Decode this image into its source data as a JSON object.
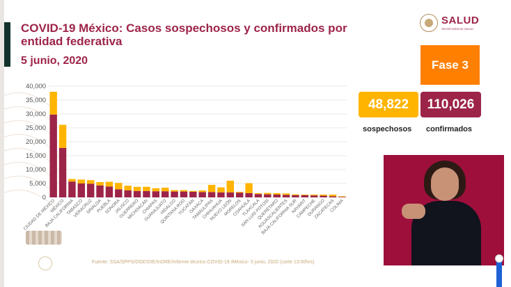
{
  "header": {
    "title": "COVID-19 México: Casos sospechosos y confirmados por entidad federativa",
    "date": "5 junio, 2020"
  },
  "logo": {
    "name": "SALUD",
    "subtitle": "SECRETARÍA DE SALUD"
  },
  "phase": {
    "label": "Fase 3",
    "color": "#ff7f00"
  },
  "totals": {
    "suspected_value": "48,822",
    "suspected_label": "sospechosos",
    "confirmed_value": "110,026",
    "confirmed_label": "confirmados"
  },
  "footer": {
    "source": "Fuente: SSA/SPPS/DGE/DIE/InDRE/Informe técnico.COVID-19 /México- 5 junio, 2020 (corte 13:00hrs)"
  },
  "colors": {
    "confirmed": "#9d2449",
    "suspected": "#ffb400",
    "title": "#9d2449",
    "axis_text": "#555555"
  },
  "chart_data": {
    "type": "bar",
    "stacked": true,
    "ylim": [
      0,
      40000
    ],
    "yticks": [
      "0",
      "5,000",
      "10,000",
      "15,000",
      "20,000",
      "25,000",
      "30,000",
      "35,000",
      "40,000"
    ],
    "ytick_values": [
      0,
      5000,
      10000,
      15000,
      20000,
      25000,
      30000,
      35000,
      40000
    ],
    "grid": true,
    "categories": [
      "CIUDAD DE MÉXICO",
      "MÉXICO",
      "BAJA CALIFORNIA",
      "TABASCO",
      "VERACRUZ",
      "SINALOA",
      "PUEBLA",
      "SONORA",
      "JALISCO",
      "GUERRERO",
      "MICHOACÁN",
      "CHIAPAS",
      "GUANAJUATO",
      "HIDALGO",
      "QUINTANA ROO",
      "YUCATÁN",
      "OAXACA",
      "TAMAULIPAS",
      "CHIHUAHUA",
      "NUEVO LEÓN",
      "MORELOS",
      "COAHUILA",
      "TLAXCALA",
      "SAN LUIS POTOSÍ",
      "QUERÉTARO",
      "AGUASCALIENTES",
      "BAJA CALIFORNIA SUR",
      "NAYARIT",
      "CAMPECHE",
      "DURANGO",
      "ZACATECAS",
      "COLIMA"
    ],
    "series": [
      {
        "name": "confirmados",
        "values": [
          29800,
          17800,
          5700,
          5000,
          4900,
          4300,
          3900,
          2900,
          2500,
          2300,
          2300,
          2200,
          2200,
          2100,
          2100,
          2000,
          1900,
          1900,
          1800,
          1800,
          1700,
          1500,
          1200,
          1100,
          1000,
          900,
          800,
          800,
          700,
          600,
          400,
          200
        ]
      },
      {
        "name": "sospechosos",
        "values": [
          8200,
          8300,
          900,
          1400,
          1300,
          1200,
          1700,
          2300,
          1700,
          1500,
          1500,
          1100,
          1300,
          500,
          500,
          300,
          600,
          2600,
          1800,
          4200,
          300,
          3600,
          300,
          500,
          500,
          500,
          300,
          200,
          300,
          400,
          600,
          200
        ]
      }
    ]
  }
}
